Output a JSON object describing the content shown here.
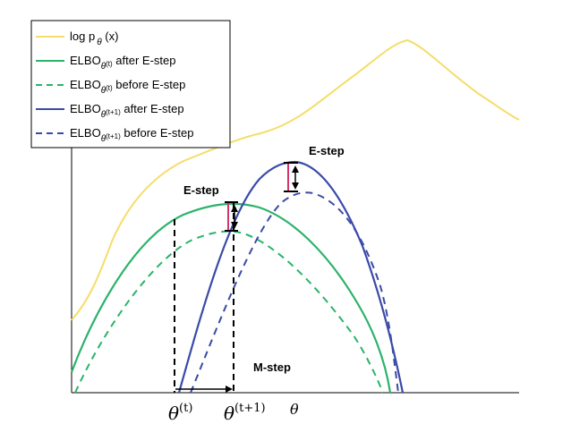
{
  "colors": {
    "log_likelihood": "#f5dd6b",
    "elbo_t": "#2bb36a",
    "elbo_t1": "#3a4aa8",
    "gap": "#d6336c",
    "axis": "#000000"
  },
  "legend": [
    {
      "base": "log p",
      "sub": "θ",
      "sup": "",
      "suffix": " (x)",
      "style": "solid",
      "series": "log_likelihood"
    },
    {
      "base": "ELBO",
      "sub": "θ",
      "sup": "(t)",
      "suffix": " after E-step",
      "style": "solid",
      "series": "elbo_t"
    },
    {
      "base": "ELBO",
      "sub": "θ",
      "sup": "(t)",
      "suffix": " before E-step",
      "style": "dashed",
      "series": "elbo_t"
    },
    {
      "base": "ELBO",
      "sub": "θ",
      "sup": "(t+1)",
      "suffix": " after E-step",
      "style": "solid",
      "series": "elbo_t1"
    },
    {
      "base": "ELBO",
      "sub": "θ",
      "sup": "(t+1)",
      "suffix": " before E-step",
      "style": "dashed",
      "series": "elbo_t1"
    }
  ],
  "annotations": {
    "estep_1": "E-step",
    "estep_2": "E-step",
    "mstep": "M-step"
  },
  "axis_labels": {
    "theta_t_base": "θ",
    "theta_t_sup": "(t)",
    "theta_t1_base": "θ",
    "theta_t1_sup": "(t+1)",
    "theta": "θ"
  }
}
